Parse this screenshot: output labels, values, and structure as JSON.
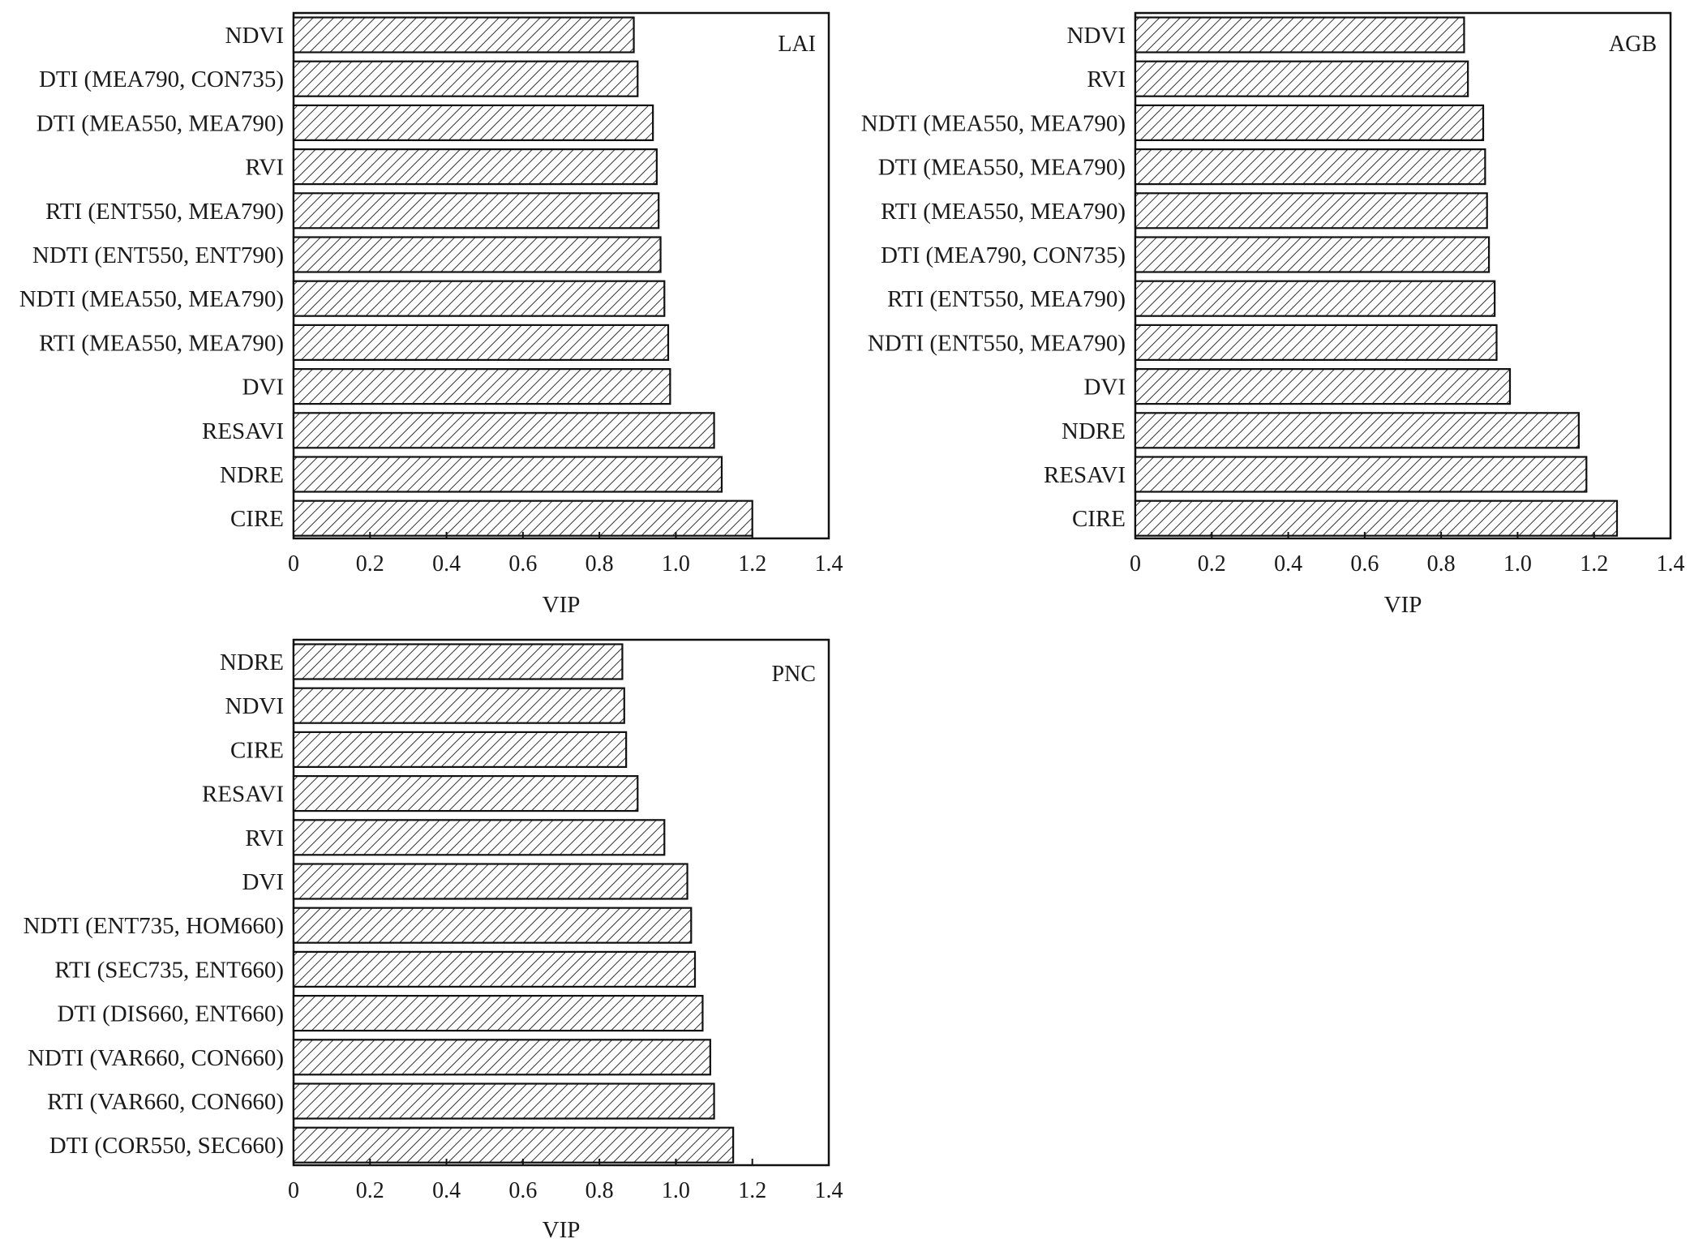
{
  "chart_data": [
    {
      "type": "bar",
      "orientation": "horizontal",
      "panel_label": "LAI",
      "categories": [
        "NDVI",
        "DTI (MEA790, CON735)",
        "DTI (MEA550, MEA790)",
        "RVI",
        "RTI (ENT550, MEA790)",
        "NDTI (ENT550, ENT790)",
        "NDTI (MEA550, MEA790)",
        "RTI (MEA550, MEA790)",
        "DVI",
        "RESAVI",
        "NDRE",
        "CIRE"
      ],
      "values": [
        0.89,
        0.9,
        0.94,
        0.95,
        0.955,
        0.96,
        0.97,
        0.98,
        0.985,
        1.1,
        1.12,
        1.2
      ],
      "xlabel": "VIP",
      "xlim": [
        0,
        1.4
      ],
      "xticks": [
        "0",
        "0.2",
        "0.4",
        "0.6",
        "0.8",
        "1.0",
        "1.2",
        "1.4"
      ],
      "pattern": "diagonal-hatch"
    },
    {
      "type": "bar",
      "orientation": "horizontal",
      "panel_label": "AGB",
      "categories": [
        "NDVI",
        "RVI",
        "NDTI (MEA550, MEA790)",
        "DTI (MEA550, MEA790)",
        "RTI (MEA550, MEA790)",
        "DTI (MEA790, CON735)",
        "RTI (ENT550, MEA790)",
        "NDTI (ENT550, MEA790)",
        "DVI",
        "NDRE",
        "RESAVI",
        "CIRE"
      ],
      "values": [
        0.86,
        0.87,
        0.91,
        0.915,
        0.92,
        0.925,
        0.94,
        0.945,
        0.98,
        1.16,
        1.18,
        1.26
      ],
      "xlabel": "VIP",
      "xlim": [
        0,
        1.4
      ],
      "xticks": [
        "0",
        "0.2",
        "0.4",
        "0.6",
        "0.8",
        "1.0",
        "1.2",
        "1.4"
      ],
      "pattern": "diagonal-hatch"
    },
    {
      "type": "bar",
      "orientation": "horizontal",
      "panel_label": "PNC",
      "categories": [
        "NDRE",
        "NDVI",
        "CIRE",
        "RESAVI",
        "RVI",
        "DVI",
        "NDTI (ENT735, HOM660)",
        "RTI (SEC735, ENT660)",
        "DTI (DIS660, ENT660)",
        "NDTI (VAR660, CON660)",
        "RTI (VAR660, CON660)",
        "DTI (COR550, SEC660)"
      ],
      "values": [
        0.86,
        0.865,
        0.87,
        0.9,
        0.97,
        1.03,
        1.04,
        1.05,
        1.07,
        1.09,
        1.1,
        1.15
      ],
      "xlabel": "VIP",
      "xlim": [
        0,
        1.4
      ],
      "xticks": [
        "0",
        "0.2",
        "0.4",
        "0.6",
        "0.8",
        "1.0",
        "1.2",
        "1.4"
      ],
      "pattern": "diagonal-hatch"
    }
  ],
  "colors": {
    "bar_fill_pattern": "#ffffff",
    "hatch_line": "#333333",
    "axis": "#111111"
  }
}
